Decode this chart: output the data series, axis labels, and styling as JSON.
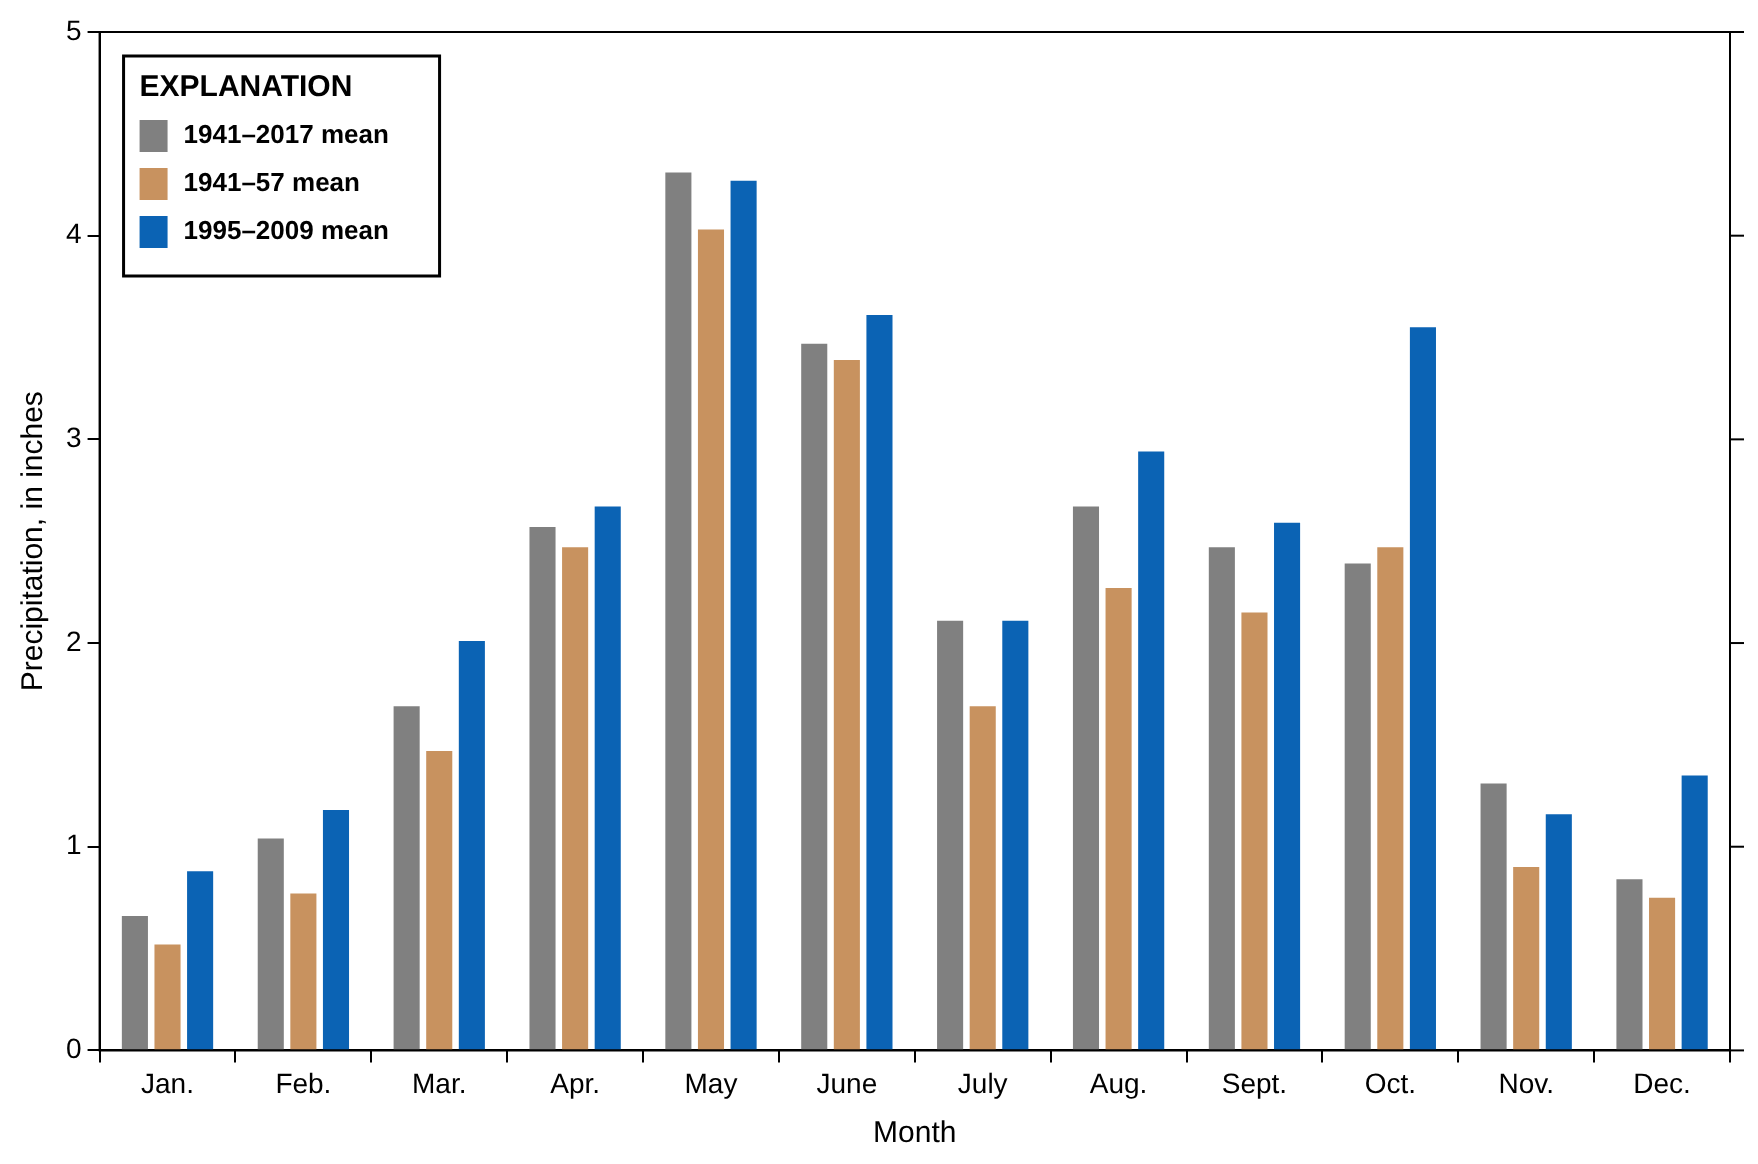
{
  "chart_data": {
    "type": "bar",
    "xlabel": "Month",
    "ylabel": "Precipitation, in inches",
    "legend_title": "EXPLANATION",
    "legend": "top left",
    "grid": false,
    "categories": [
      "Jan.",
      "Feb.",
      "Mar.",
      "Apr.",
      "May",
      "June",
      "July",
      "Aug.",
      "Sept.",
      "Oct.",
      "Nov.",
      "Dec."
    ],
    "ylim": [
      0,
      5
    ],
    "yticks": [
      0,
      1,
      2,
      3,
      4,
      5
    ],
    "series": [
      {
        "name": "1941–2017 mean",
        "color": "#808080",
        "values": [
          0.66,
          1.04,
          1.69,
          2.57,
          4.31,
          3.47,
          2.11,
          2.67,
          2.47,
          2.39,
          1.31,
          0.84
        ]
      },
      {
        "name": "1941–57 mean",
        "color": "#c8925f",
        "values": [
          0.52,
          0.77,
          1.47,
          2.47,
          4.03,
          3.39,
          1.69,
          2.27,
          2.15,
          2.47,
          0.9,
          0.75
        ]
      },
      {
        "name": "1995–2009 mean",
        "color": "#0b63b4",
        "values": [
          0.88,
          1.18,
          2.01,
          2.67,
          4.27,
          3.61,
          2.11,
          2.94,
          2.59,
          3.55,
          1.16,
          1.35
        ]
      }
    ]
  }
}
